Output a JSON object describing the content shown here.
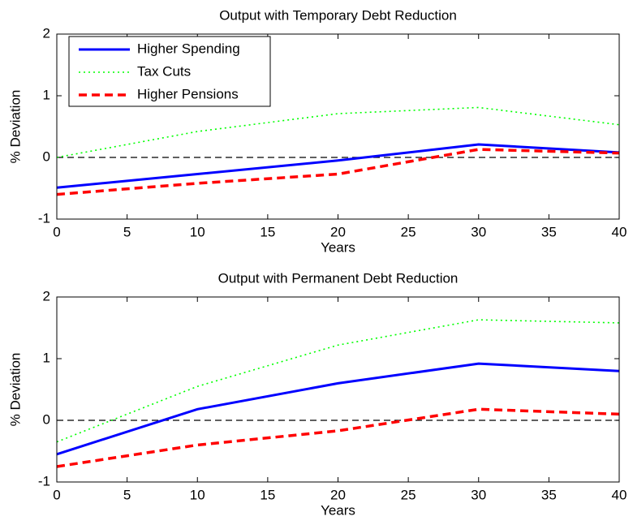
{
  "chart_data": [
    {
      "type": "line",
      "title": "Output with Temporary Debt Reduction",
      "x_label": "Years",
      "y_label": "% Deviation",
      "x": [
        0,
        10,
        20,
        30,
        40
      ],
      "series": [
        {
          "name": "Higher Spending",
          "color": "#0000ff",
          "linestyle": "solid",
          "values": [
            -0.49,
            -0.27,
            -0.05,
            0.21,
            0.08
          ]
        },
        {
          "name": "Tax Cuts",
          "color": "#00ff00",
          "linestyle": "dotted",
          "values": [
            0.0,
            0.42,
            0.71,
            0.81,
            0.53
          ]
        },
        {
          "name": "Higher Pensions",
          "color": "#ff0000",
          "linestyle": "dashed",
          "values": [
            -0.6,
            -0.42,
            -0.27,
            0.13,
            0.07
          ]
        }
      ],
      "xlim": [
        0,
        40
      ],
      "xticks": [
        0,
        5,
        10,
        15,
        20,
        25,
        30,
        35,
        40
      ],
      "ylim": [
        -1,
        2
      ],
      "yticks": [
        -1,
        0,
        1,
        2
      ],
      "hline": 0,
      "legend": "upper left"
    },
    {
      "type": "line",
      "title": "Output with Permanent Debt Reduction",
      "x_label": "Years",
      "y_label": "% Deviation",
      "x": [
        0,
        10,
        20,
        30,
        40
      ],
      "series": [
        {
          "color": "#0000ff",
          "linestyle": "solid",
          "values": [
            -0.55,
            0.18,
            0.6,
            0.92,
            0.8
          ]
        },
        {
          "color": "#00ff00",
          "linestyle": "dotted",
          "values": [
            -0.35,
            0.55,
            1.22,
            1.63,
            1.58
          ]
        },
        {
          "color": "#ff0000",
          "linestyle": "dashed",
          "values": [
            -0.75,
            -0.4,
            -0.17,
            0.18,
            0.1
          ]
        }
      ],
      "xlim": [
        0,
        40
      ],
      "xticks": [
        0,
        5,
        10,
        15,
        20,
        25,
        30,
        35,
        40
      ],
      "ylim": [
        -1,
        2
      ],
      "yticks": [
        -1,
        0,
        1,
        2
      ],
      "hline": 0
    }
  ]
}
